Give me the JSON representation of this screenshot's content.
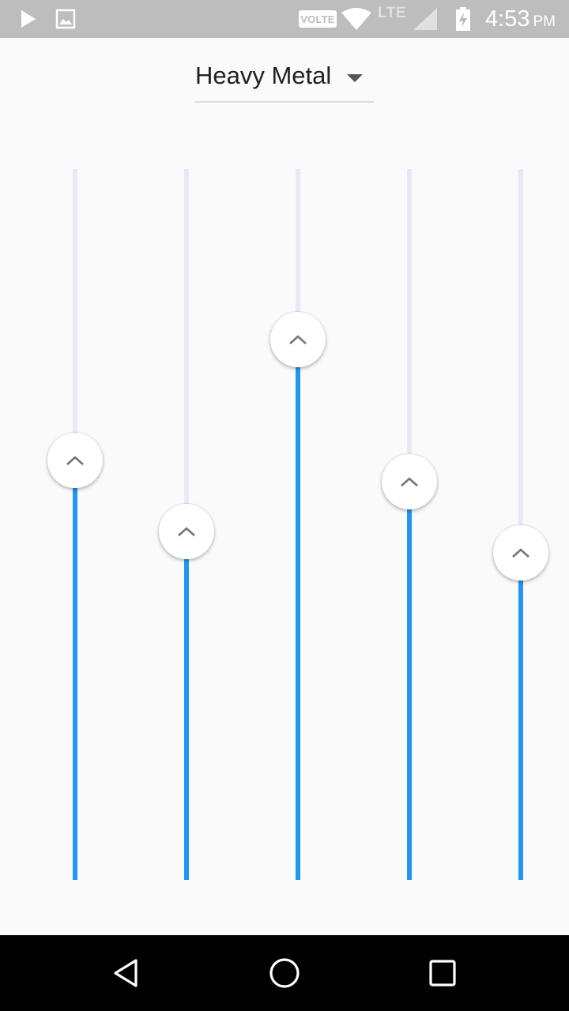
{
  "status_bar": {
    "network_badge": "VOLTE",
    "network_type": "LTE",
    "time": "4:53",
    "ampm": "PM",
    "icons": [
      "play-store-icon",
      "gallery-icon",
      "wifi-icon",
      "signal-icon",
      "battery-charging-icon"
    ]
  },
  "equalizer": {
    "preset": "Heavy Metal",
    "bands": [
      {
        "level": 0.59
      },
      {
        "level": 0.49
      },
      {
        "level": 0.76
      },
      {
        "level": 0.56
      },
      {
        "level": 0.46
      }
    ],
    "fill_color": "#2196f3",
    "track_color": "#e9e8f6"
  },
  "nav_bar": {
    "icons": [
      "back-icon",
      "home-icon",
      "recents-icon"
    ]
  }
}
